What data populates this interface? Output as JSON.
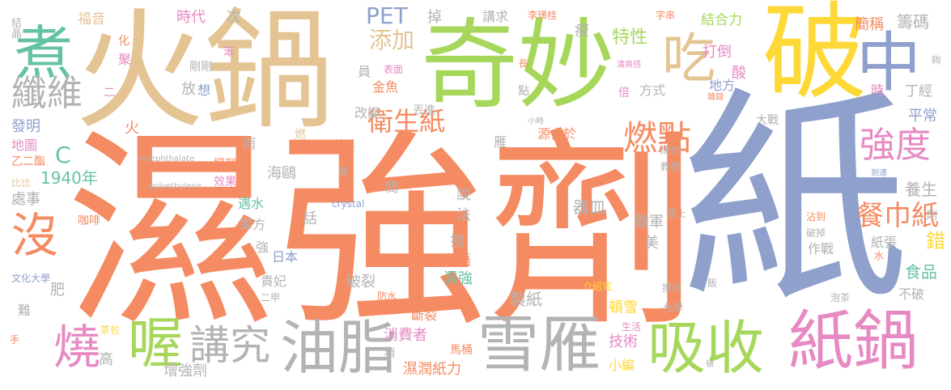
{
  "palette": {
    "orange": "#f58b62",
    "slate": "#8ea0cb",
    "green": "#a6d75b",
    "tan": "#e5c494",
    "yellow": "#fed836",
    "grey": "#b3b3b3",
    "teal": "#66c2a5",
    "pink": "#e78ac3"
  },
  "words": [
    {
      "text": "濕強劑",
      "color": "orange"
    },
    {
      "text": "紙",
      "color": "slate"
    },
    {
      "text": "火鍋",
      "color": "tan"
    },
    {
      "text": "奇妙",
      "color": "green"
    },
    {
      "text": "破",
      "color": "yellow"
    },
    {
      "text": "中",
      "color": "slate"
    },
    {
      "text": "煮",
      "color": "teal"
    },
    {
      "text": "吃",
      "color": "tan"
    },
    {
      "text": "纖維",
      "color": "grey"
    },
    {
      "text": "紙鍋",
      "color": "pink"
    },
    {
      "text": "雪雁",
      "color": "grey"
    },
    {
      "text": "油脂",
      "color": "grey"
    },
    {
      "text": "吸收",
      "color": "green"
    },
    {
      "text": "喔",
      "color": "green"
    },
    {
      "text": "燒",
      "color": "pink"
    },
    {
      "text": "沒",
      "color": "orange"
    },
    {
      "text": "講究",
      "color": "grey"
    },
    {
      "text": "強度",
      "color": "pink"
    },
    {
      "text": "燃點",
      "color": "orange"
    },
    {
      "text": "衛生紙",
      "color": "orange"
    },
    {
      "text": "餐巾紙",
      "color": "orange"
    },
    {
      "text": "特性",
      "color": "green"
    },
    {
      "text": "結合力",
      "color": "green"
    },
    {
      "text": "簡稱",
      "color": "orange"
    },
    {
      "text": "籌碼",
      "color": "grey"
    },
    {
      "text": "添加",
      "color": "tan"
    },
    {
      "text": "PET",
      "color": "slate"
    },
    {
      "text": "1940年",
      "color": "teal"
    },
    {
      "text": "C",
      "color": "teal"
    },
    {
      "text": "時代",
      "color": "pink"
    },
    {
      "text": "福音",
      "color": "tan"
    },
    {
      "text": "結晶",
      "color": "grey"
    },
    {
      "text": "次",
      "color": "grey"
    },
    {
      "text": "掉",
      "color": "grey"
    },
    {
      "text": "講求",
      "color": "grey"
    },
    {
      "text": "李璜桂",
      "color": "orange"
    },
    {
      "text": "字串",
      "color": "orange"
    },
    {
      "text": "瘦",
      "color": "grey"
    },
    {
      "text": "打倒",
      "color": "pink"
    },
    {
      "text": "酸",
      "color": "pink"
    },
    {
      "text": "地方",
      "color": "slate"
    },
    {
      "text": "丁經",
      "color": "grey"
    },
    {
      "text": "平常",
      "color": "slate"
    },
    {
      "text": "養生",
      "color": "grey"
    },
    {
      "text": "食品",
      "color": "teal"
    },
    {
      "text": "不破",
      "color": "grey"
    },
    {
      "text": "錯",
      "color": "yellow"
    },
    {
      "text": "美",
      "color": "grey"
    },
    {
      "text": "敵軍",
      "color": "grey"
    },
    {
      "text": "紙張",
      "color": "grey"
    },
    {
      "text": "作戰",
      "color": "grey"
    },
    {
      "text": "頓雪",
      "color": "yellow"
    },
    {
      "text": "技術",
      "color": "pink"
    },
    {
      "text": "小編",
      "color": "yellow"
    },
    {
      "text": "器皿",
      "color": "grey"
    },
    {
      "text": "源自於",
      "color": "orange"
    },
    {
      "text": "雁",
      "color": "grey"
    },
    {
      "text": "製紙",
      "color": "grey"
    },
    {
      "text": "消費者",
      "color": "pink"
    },
    {
      "text": "濕潤紙力",
      "color": "orange"
    },
    {
      "text": "項",
      "color": "grey"
    },
    {
      "text": "馬桶",
      "color": "orange"
    },
    {
      "text": "斷裂",
      "color": "orange"
    },
    {
      "text": "破裂",
      "color": "grey"
    },
    {
      "text": "台語",
      "color": "orange"
    },
    {
      "text": "濕強",
      "color": "teal"
    },
    {
      "text": "撈",
      "color": "grey"
    },
    {
      "text": "法",
      "color": "grey"
    },
    {
      "text": "說",
      "color": "grey"
    },
    {
      "text": "間",
      "color": "grey"
    },
    {
      "text": "金魚",
      "color": "orange"
    },
    {
      "text": "改變",
      "color": "grey"
    },
    {
      "text": "丟進",
      "color": "grey"
    },
    {
      "text": "表面",
      "color": "pink"
    },
    {
      "text": "員",
      "color": "grey"
    },
    {
      "text": "海鷗",
      "color": "grey"
    },
    {
      "text": "日本",
      "color": "slate"
    },
    {
      "text": "貴妃",
      "color": "grey"
    },
    {
      "text": "遇水",
      "color": "teal"
    },
    {
      "text": "軍方",
      "color": "grey"
    },
    {
      "text": "話",
      "color": "grey"
    },
    {
      "text": "強",
      "color": "grey"
    },
    {
      "text": "雨",
      "color": "grey"
    },
    {
      "text": "放",
      "color": "grey"
    },
    {
      "text": "想",
      "color": "slate"
    },
    {
      "text": "二",
      "color": "pink"
    },
    {
      "text": "火",
      "color": "orange"
    },
    {
      "text": "剛剛",
      "color": "grey"
    },
    {
      "text": "苯",
      "color": "pink"
    },
    {
      "text": "化",
      "color": "orange"
    },
    {
      "text": "聚",
      "color": "pink"
    },
    {
      "text": "發明",
      "color": "slate"
    },
    {
      "text": "地圖",
      "color": "pink"
    },
    {
      "text": "乙二酯",
      "color": "orange"
    },
    {
      "text": "比比",
      "color": "tan"
    },
    {
      "text": "處事",
      "color": "grey"
    },
    {
      "text": "咖啡",
      "color": "orange"
    },
    {
      "text": "肥",
      "color": "grey"
    },
    {
      "text": "文化大學",
      "color": "slate"
    },
    {
      "text": "難",
      "color": "grey"
    },
    {
      "text": "手",
      "color": "orange"
    },
    {
      "text": "茶包",
      "color": "yellow"
    },
    {
      "text": "高",
      "color": "grey"
    },
    {
      "text": "增強劑",
      "color": "grey"
    },
    {
      "text": "提到",
      "color": "orange"
    },
    {
      "text": "效果",
      "color": "pink"
    },
    {
      "text": "crystal",
      "color": "slate"
    },
    {
      "text": "terephthalate",
      "color": "grey"
    },
    {
      "text": "polyethylene",
      "color": "grey"
    },
    {
      "text": "濾紙",
      "color": "orange"
    },
    {
      "text": "燃",
      "color": "tan"
    },
    {
      "text": "囉",
      "color": "grey"
    },
    {
      "text": "化工系",
      "color": "orange"
    },
    {
      "text": "小時",
      "color": "grey"
    },
    {
      "text": "大戰",
      "color": "grey"
    },
    {
      "text": "成份",
      "color": "grey"
    },
    {
      "text": "教授",
      "color": "grey"
    },
    {
      "text": "塗上",
      "color": "grey"
    },
    {
      "text": "沾到",
      "color": "orange"
    },
    {
      "text": "破掉",
      "color": "grey"
    },
    {
      "text": "到達",
      "color": "slate"
    },
    {
      "text": "化學",
      "color": "grey"
    },
    {
      "text": "擦拭",
      "color": "grey"
    },
    {
      "text": "泡茶",
      "color": "grey"
    },
    {
      "text": "介紹完",
      "color": "yellow"
    },
    {
      "text": "生活",
      "color": "pink"
    },
    {
      "text": "防水",
      "color": "orange"
    },
    {
      "text": "功效",
      "color": "orange"
    },
    {
      "text": "二甲",
      "color": "grey"
    },
    {
      "text": "方式",
      "color": "grey"
    },
    {
      "text": "倍",
      "color": "pink"
    },
    {
      "text": "點",
      "color": "grey"
    },
    {
      "text": "長",
      "color": "orange"
    },
    {
      "text": "時",
      "color": "pink"
    },
    {
      "text": "清爽感",
      "color": "pink"
    },
    {
      "text": "雜錯",
      "color": "orange"
    },
    {
      "text": "飯",
      "color": "grey"
    },
    {
      "text": "頓",
      "color": "grey"
    },
    {
      "text": "水",
      "color": "orange"
    },
    {
      "text": "劑",
      "color": "grey"
    },
    {
      "text": "夠",
      "color": "grey"
    }
  ]
}
